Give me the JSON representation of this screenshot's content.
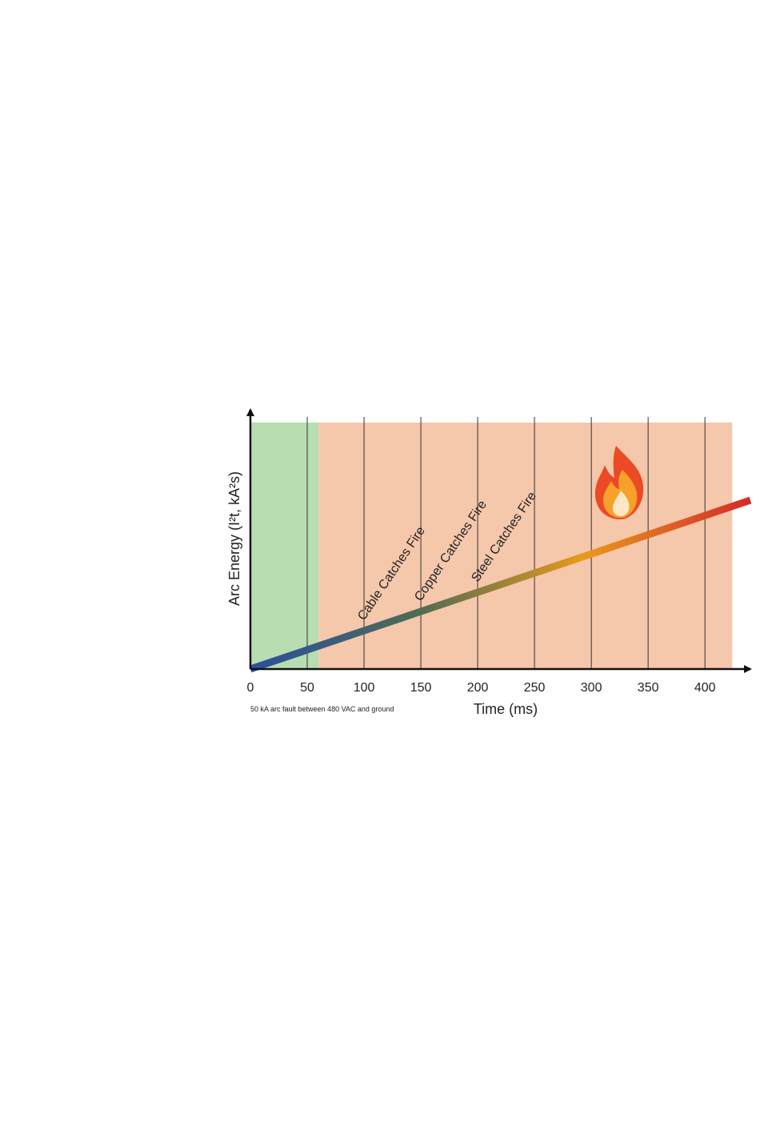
{
  "chart_data": {
    "type": "line",
    "x_label": "Time (ms)",
    "y_label": "Arc Energy (I²t, kA²s)",
    "caption": "50 kA arc fault between 480 VAC and ground",
    "x": [
      0,
      440
    ],
    "series": [
      {
        "name": "Arc Energy",
        "colors": [
          "#2a4f9e",
          "#4f6b55",
          "#e89a1c",
          "#d42a2a"
        ],
        "values": [
          0,
          68.5
        ]
      }
    ],
    "xlim": [
      0,
      440
    ],
    "ylim": [
      0,
      100
    ],
    "xticks": [
      0,
      50,
      100,
      150,
      200,
      250,
      300,
      350,
      400
    ],
    "grid": true,
    "regions": [
      {
        "x0": 0,
        "x1": 60,
        "color": "#b7ddb0"
      },
      {
        "x0": 60,
        "x1": 424,
        "color": "#f5c7ab"
      }
    ],
    "annotations": [
      {
        "text": "Cable Catches Fire",
        "x": 100
      },
      {
        "text": "Copper Catches Fire",
        "x": 150
      },
      {
        "text": "Steel Catches Fire",
        "x": 200
      }
    ]
  }
}
